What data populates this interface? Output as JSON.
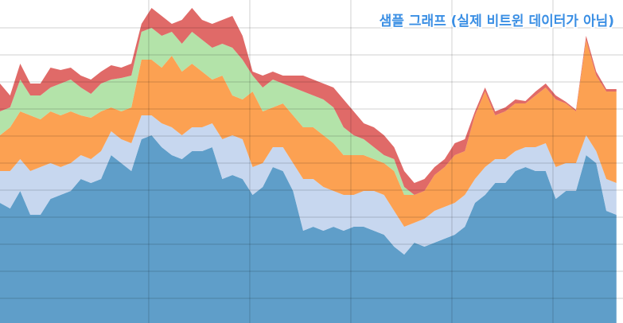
{
  "chart_data": {
    "type": "stacked_area",
    "title": "샘플 그래프 (실제 비트윈 데이터가 아님)",
    "x": [
      0,
      1,
      2,
      3,
      4,
      5,
      6,
      7,
      8,
      9,
      10,
      11,
      12,
      13,
      14,
      15,
      16,
      17,
      18,
      19,
      20,
      21,
      22,
      23,
      24,
      25,
      26,
      27,
      28,
      29,
      30,
      31,
      32,
      33,
      34,
      35,
      36,
      37,
      38,
      39,
      40,
      41,
      42,
      43,
      44,
      45,
      46,
      47,
      48,
      49,
      50,
      51,
      52,
      53,
      54,
      55,
      56,
      57,
      58,
      59,
      60,
      61
    ],
    "series": [
      {
        "color": "#5f9ec9",
        "values": [
          151,
          144,
          166,
          136,
          136,
          156,
          161,
          166,
          181,
          176,
          181,
          211,
          201,
          191,
          231,
          236,
          221,
          211,
          206,
          216,
          216,
          221,
          181,
          186,
          181,
          161,
          171,
          196,
          191,
          166,
          116,
          121,
          116,
          121,
          116,
          121,
          121,
          116,
          111,
          96,
          86,
          101,
          96,
          101,
          106,
          111,
          121,
          151,
          161,
          176,
          176,
          191,
          196,
          191,
          191,
          156,
          166,
          166,
          211,
          201,
          141,
          136
        ]
      },
      {
        "color": "#c7d7ef",
        "values": [
          40,
          47,
          40,
          55,
          60,
          45,
          35,
          35,
          30,
          30,
          35,
          30,
          30,
          35,
          30,
          25,
          30,
          35,
          30,
          30,
          30,
          30,
          50,
          50,
          50,
          35,
          30,
          25,
          30,
          35,
          65,
          60,
          55,
          45,
          45,
          40,
          45,
          50,
          50,
          45,
          35,
          25,
          35,
          40,
          40,
          40,
          40,
          30,
          35,
          30,
          30,
          25,
          25,
          30,
          35,
          40,
          35,
          35,
          25,
          15,
          40,
          40
        ]
      },
      {
        "color": "#fca152",
        "values": [
          45,
          55,
          60,
          70,
          60,
          65,
          65,
          65,
          50,
          52,
          50,
          30,
          35,
          45,
          70,
          70,
          70,
          90,
          80,
          80,
          70,
          55,
          80,
          50,
          50,
          95,
          65,
          50,
          55,
          60,
          65,
          65,
          65,
          60,
          50,
          50,
          45,
          40,
          40,
          50,
          40,
          35,
          35,
          45,
          50,
          60,
          55,
          80,
          95,
          55,
          60,
          60,
          55,
          65,
          70,
          85,
          75,
          65,
          120,
          95,
          110,
          115
        ]
      },
      {
        "color": "#b3e3a9",
        "values": [
          30,
          25,
          40,
          25,
          30,
          30,
          40,
          40,
          35,
          30,
          35,
          35,
          42,
          40,
          35,
          40,
          40,
          30,
          35,
          40,
          40,
          40,
          40,
          60,
          50,
          20,
          30,
          35,
          25,
          35,
          45,
          40,
          45,
          45,
          35,
          25,
          20,
          15,
          10,
          15,
          10,
          0,
          0,
          0,
          0,
          0,
          0,
          0,
          0,
          0,
          0,
          0,
          0,
          0,
          0,
          0,
          0,
          0,
          0,
          0,
          0,
          0
        ]
      },
      {
        "color": "#e06a68",
        "values": [
          35,
          15,
          20,
          15,
          15,
          25,
          17,
          15,
          15,
          18,
          15,
          18,
          13,
          15,
          10,
          25,
          25,
          10,
          30,
          30,
          25,
          30,
          30,
          40,
          30,
          5,
          15,
          10,
          10,
          15,
          20,
          20,
          20,
          25,
          35,
          30,
          20,
          25,
          25,
          15,
          20,
          15,
          15,
          10,
          10,
          15,
          15,
          5,
          5,
          5,
          5,
          5,
          3,
          5,
          5,
          5,
          2,
          2,
          5,
          5,
          3,
          3
        ]
      }
    ],
    "xlim": [
      0,
      61.65
    ],
    "xticks": [
      14.72,
      24.72,
      34.72,
      44.72,
      54.72
    ],
    "ylim": [
      0,
      406
    ],
    "yticks": [
      31,
      65,
      99,
      133,
      167,
      201,
      235,
      269,
      303,
      337,
      371
    ],
    "grid": true
  }
}
